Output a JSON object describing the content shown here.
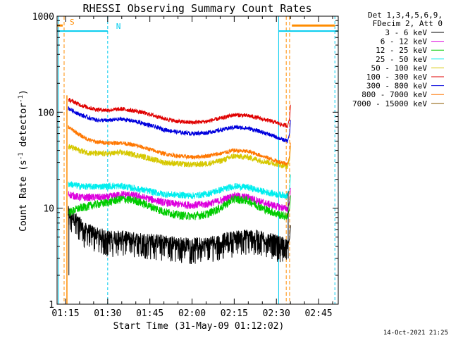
{
  "chart_data": {
    "type": "line",
    "title": "RHESSI Observing Summary Count Rates",
    "xlabel": "Start Time (31-May-09 01:12:02)",
    "ylabel_main": "Count Rate (s",
    "ylabel_sup1": "-1",
    "ylabel_mid": " detector",
    "ylabel_sup2": "-1",
    "ylabel_end": ")",
    "footer": "14-Oct-2021 21:25",
    "xlim": [
      72,
      172
    ],
    "ylim": [
      1,
      1000
    ],
    "yscale": "log",
    "xticks": [
      {
        "value": 75,
        "label": "01:15"
      },
      {
        "value": 90,
        "label": "01:30"
      },
      {
        "value": 105,
        "label": "01:45"
      },
      {
        "value": 120,
        "label": "02:00"
      },
      {
        "value": 135,
        "label": "02:15"
      },
      {
        "value": 150,
        "label": "02:30"
      },
      {
        "value": 165,
        "label": "02:45"
      }
    ],
    "yticks": [
      {
        "value": 1,
        "label": "1"
      },
      {
        "value": 10,
        "label": "10"
      },
      {
        "value": 100,
        "label": "100"
      },
      {
        "value": 1000,
        "label": "1000"
      }
    ],
    "legend_header": [
      "Det 1,3,4,5,6,9,",
      "FDecim 2, Att 0"
    ],
    "legend_placement": "right",
    "grid": false,
    "series": [
      {
        "name": "3 - 6 keV",
        "color": "#000000",
        "x": [
          76,
          78,
          80,
          82,
          86,
          90,
          95,
          100,
          105,
          110,
          115,
          120,
          125,
          130,
          135,
          140,
          145,
          150,
          152,
          154
        ],
        "y": [
          9,
          8,
          7,
          6,
          5.5,
          5,
          5,
          4.8,
          4.7,
          4.5,
          4.3,
          4.2,
          4.3,
          4.6,
          5,
          5.2,
          5,
          4.5,
          4.3,
          4
        ]
      },
      {
        "name": "6 - 12 keV",
        "color": "#dd00dd",
        "x": [
          76,
          78,
          80,
          83,
          86,
          90,
          95,
          100,
          105,
          110,
          115,
          120,
          125,
          130,
          135,
          140,
          145,
          150,
          152,
          154
        ],
        "y": [
          14,
          13.5,
          13,
          13,
          13,
          13,
          14,
          13.5,
          12.5,
          11.5,
          11,
          10.8,
          11,
          12,
          13.5,
          13,
          11.5,
          10.5,
          10.2,
          9.8
        ]
      },
      {
        "name": "12 - 25 keV",
        "color": "#00cc00",
        "x": [
          76,
          78,
          80,
          83,
          86,
          90,
          95,
          100,
          105,
          110,
          115,
          120,
          125,
          130,
          135,
          140,
          145,
          150,
          152,
          154
        ],
        "y": [
          9,
          9.5,
          10,
          10.5,
          11,
          11.5,
          12.5,
          12,
          10.5,
          9.2,
          8.5,
          8.3,
          8.6,
          10,
          12.5,
          12,
          10,
          8.8,
          8.4,
          8.2
        ]
      },
      {
        "name": "25 - 50 keV",
        "color": "#00eeee",
        "x": [
          76,
          78,
          80,
          83,
          86,
          90,
          95,
          100,
          105,
          110,
          115,
          120,
          125,
          130,
          135,
          140,
          145,
          150,
          152,
          154
        ],
        "y": [
          18,
          17.5,
          17,
          16.8,
          16.8,
          17,
          17,
          16,
          15,
          14,
          13.8,
          13.5,
          14,
          15.5,
          17,
          16.5,
          15,
          14,
          13.8,
          13.5
        ]
      },
      {
        "name": "50 - 100 keV",
        "color": "#d6c800",
        "x": [
          76,
          78,
          80,
          83,
          86,
          90,
          95,
          100,
          105,
          110,
          115,
          120,
          125,
          130,
          135,
          140,
          145,
          150,
          152,
          154
        ],
        "y": [
          44,
          42,
          40,
          38,
          37,
          37,
          38,
          36,
          33,
          30,
          29,
          28.5,
          29,
          31,
          35,
          34,
          31,
          29,
          28,
          27
        ]
      },
      {
        "name": "100 - 300 keV",
        "color": "#e00000",
        "x": [
          76,
          78,
          80,
          83,
          86,
          90,
          95,
          100,
          105,
          110,
          115,
          120,
          125,
          130,
          135,
          140,
          145,
          150,
          152,
          154
        ],
        "y": [
          135,
          128,
          120,
          112,
          107,
          105,
          108,
          103,
          95,
          86,
          80,
          78,
          80,
          86,
          94,
          92,
          85,
          78,
          74,
          72
        ]
      },
      {
        "name": "300 - 800 keV",
        "color": "#0000dd",
        "x": [
          76,
          78,
          80,
          83,
          86,
          90,
          95,
          100,
          105,
          110,
          115,
          120,
          125,
          130,
          135,
          140,
          145,
          150,
          152,
          154
        ],
        "y": [
          110,
          102,
          95,
          88,
          83,
          82,
          85,
          80,
          73,
          66,
          62,
          60,
          61,
          65,
          70,
          68,
          62,
          55,
          52,
          50
        ]
      },
      {
        "name": "800 - 7000 keV",
        "color": "#ff7700",
        "x": [
          76,
          78,
          80,
          83,
          86,
          90,
          95,
          100,
          105,
          110,
          115,
          120,
          125,
          130,
          135,
          140,
          145,
          150,
          152,
          154
        ],
        "y": [
          70,
          64,
          58,
          52,
          49,
          48,
          48,
          45,
          41,
          37,
          35,
          34,
          35,
          37,
          40,
          39,
          35,
          31,
          30,
          29
        ]
      },
      {
        "name": "7000 - 15000 keV",
        "color": "#8b5a00",
        "x": [],
        "y": []
      }
    ],
    "annotations": [
      {
        "text": "S",
        "color": "#ff8c00"
      },
      {
        "text": "N",
        "color": "#00ccee"
      }
    ]
  }
}
